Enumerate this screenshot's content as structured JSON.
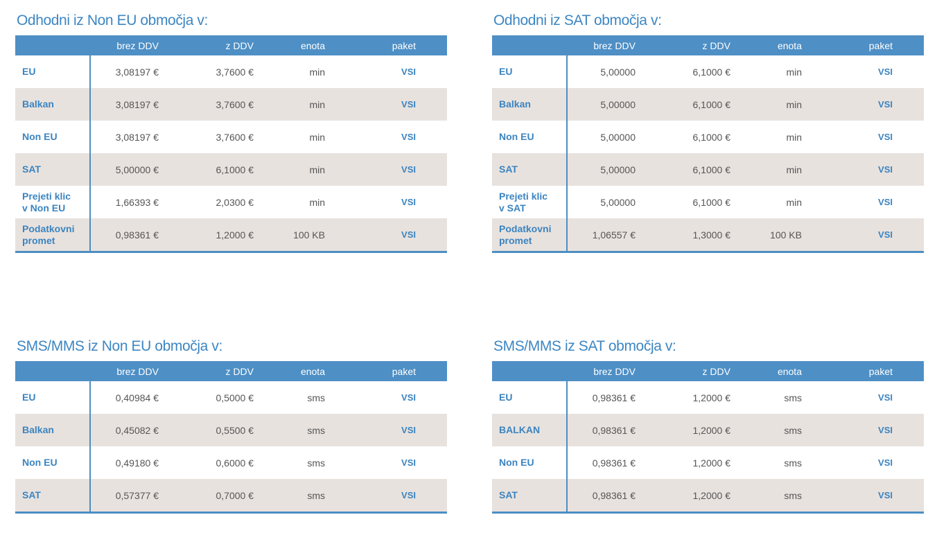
{
  "columns": {
    "brez_ddv": "brez DDV",
    "z_ddv": "z DDV",
    "enota": "enota",
    "paket": "paket"
  },
  "tables": [
    {
      "title": "Odhodni iz Non EU območja v:",
      "rows": [
        {
          "name": "EU",
          "brez": "3,08197 €",
          "z": "3,7600 €",
          "enota": "min",
          "paket": "VSI"
        },
        {
          "name": "Balkan",
          "brez": "3,08197 €",
          "z": "3,7600 €",
          "enota": "min",
          "paket": "VSI"
        },
        {
          "name": "Non EU",
          "brez": "3,08197 €",
          "z": "3,7600 €",
          "enota": "min",
          "paket": "VSI"
        },
        {
          "name": "SAT",
          "brez": "5,00000 €",
          "z": "6,1000 €",
          "enota": "min",
          "paket": "VSI"
        },
        {
          "name": "Prejeti klic\nv Non EU",
          "brez": "1,66393 €",
          "z": "2,0300 €",
          "enota": "min",
          "paket": "VSI"
        },
        {
          "name": "Podatkovni\npromet",
          "brez": "0,98361 €",
          "z": "1,2000 €",
          "enota": "100 KB",
          "paket": "VSI"
        }
      ]
    },
    {
      "title": "Odhodni iz SAT območja v:",
      "rows": [
        {
          "name": "EU",
          "brez": "5,00000",
          "z": "6,1000 €",
          "enota": "min",
          "paket": "VSI"
        },
        {
          "name": "Balkan",
          "brez": "5,00000",
          "z": "6,1000 €",
          "enota": "min",
          "paket": "VSI"
        },
        {
          "name": "Non EU",
          "brez": "5,00000",
          "z": "6,1000 €",
          "enota": "min",
          "paket": "VSI"
        },
        {
          "name": "SAT",
          "brez": "5,00000",
          "z": "6,1000 €",
          "enota": "min",
          "paket": "VSI"
        },
        {
          "name": "Prejeti klic\nv  SAT",
          "brez": "5,00000",
          "z": "6,1000 €",
          "enota": "min",
          "paket": "VSI"
        },
        {
          "name": "Podatkovni\npromet",
          "brez": "1,06557 €",
          "z": "1,3000 €",
          "enota": "100 KB",
          "paket": "VSI"
        }
      ]
    },
    {
      "title": "SMS/MMS iz Non EU območja v:",
      "rows": [
        {
          "name": "EU",
          "brez": "0,40984 €",
          "z": "0,5000 €",
          "enota": "sms",
          "paket": "VSI"
        },
        {
          "name": "Balkan",
          "brez": "0,45082 €",
          "z": "0,5500 €",
          "enota": "sms",
          "paket": "VSI"
        },
        {
          "name": "Non EU",
          "brez": "0,49180 €",
          "z": "0,6000 €",
          "enota": "sms",
          "paket": "VSI"
        },
        {
          "name": "SAT",
          "brez": "0,57377 €",
          "z": "0,7000 €",
          "enota": "sms",
          "paket": "VSI"
        }
      ]
    },
    {
      "title": "SMS/MMS iz SAT območja v:",
      "rows": [
        {
          "name": "EU",
          "brez": "0,98361 €",
          "z": "1,2000 €",
          "enota": "sms",
          "paket": "VSI"
        },
        {
          "name": "BALKAN",
          "brez": "0,98361 €",
          "z": "1,2000 €",
          "enota": "sms",
          "paket": "VSI"
        },
        {
          "name": "Non EU",
          "brez": "0,98361 €",
          "z": "1,2000 €",
          "enota": "sms",
          "paket": "VSI"
        },
        {
          "name": "SAT",
          "brez": "0,98361 €",
          "z": "1,2000 €",
          "enota": "sms",
          "paket": "VSI"
        }
      ]
    }
  ]
}
